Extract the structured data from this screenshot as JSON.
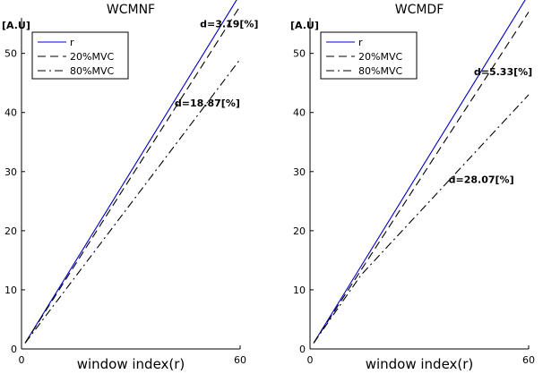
{
  "chart_data": [
    {
      "type": "line",
      "title": "WCMNF",
      "xlabel": "window index(r)",
      "ylabel": "[A.U]",
      "xlim": [
        0,
        60
      ],
      "ylim": [
        0,
        56
      ],
      "xticks": [
        0,
        60
      ],
      "yticks": [
        0,
        10,
        20,
        30,
        40,
        50
      ],
      "legend_position": "top-left",
      "series": [
        {
          "name": "r",
          "color": "#0000cc",
          "style": "solid",
          "x": [
            1,
            60
          ],
          "y": [
            1,
            60
          ]
        },
        {
          "name": "20%MVC",
          "color": "#000000",
          "style": "dashed",
          "x": [
            1,
            60
          ],
          "y": [
            1,
            58
          ]
        },
        {
          "name": "80%MVC",
          "color": "#000000",
          "style": "dashdot",
          "x": [
            1,
            60
          ],
          "y": [
            1,
            49
          ]
        }
      ],
      "annotations": [
        {
          "text": "d=3.19[%]",
          "x": 57,
          "y": 54.4
        },
        {
          "text": "d=18.87[%]",
          "x": 51,
          "y": 41
        }
      ]
    },
    {
      "type": "line",
      "title": "WCMDF",
      "xlabel": "window index(r)",
      "ylabel": "[A.U]",
      "xlim": [
        0,
        60
      ],
      "ylim": [
        0,
        56
      ],
      "xticks": [
        0,
        60
      ],
      "yticks": [
        0,
        10,
        20,
        30,
        40,
        50
      ],
      "legend_position": "top-left",
      "series": [
        {
          "name": "r",
          "color": "#0000cc",
          "style": "solid",
          "x": [
            1,
            60
          ],
          "y": [
            1,
            60
          ]
        },
        {
          "name": "20%MVC",
          "color": "#000000",
          "style": "dashed",
          "x": [
            1,
            60
          ],
          "y": [
            1,
            57
          ]
        },
        {
          "name": "80%MVC",
          "color": "#000000",
          "style": "dashdot",
          "x": [
            1,
            14,
            60
          ],
          "y": [
            1,
            12.5,
            43
          ]
        }
      ],
      "annotations": [
        {
          "text": "d=5.33[%]",
          "x": 53,
          "y": 46.3
        },
        {
          "text": "d=28.07[%]",
          "x": 47,
          "y": 28.1
        }
      ]
    }
  ]
}
